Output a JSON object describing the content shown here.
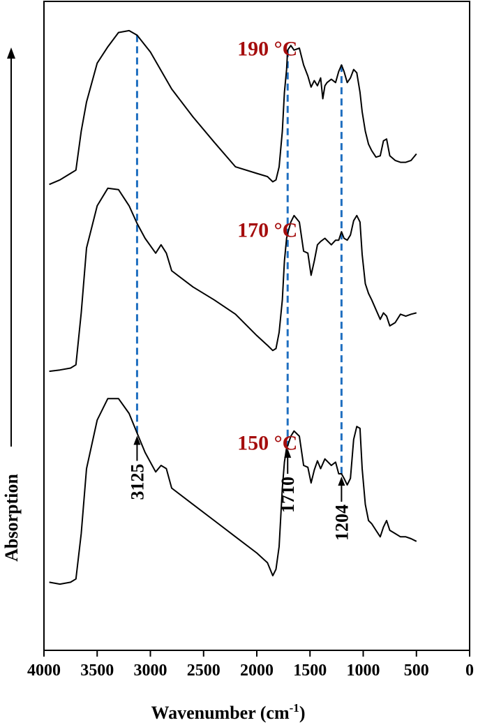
{
  "chart_data": {
    "type": "line",
    "title": "",
    "xlabel": "Wavenumber (cm",
    "xlabel_sup": "-1",
    "xlabel_end": ")",
    "ylabel": "Absorption",
    "xlim": [
      4000,
      0
    ],
    "x_reversed": true,
    "x_ticks": [
      "4000",
      "3500",
      "3000",
      "2500",
      "2000",
      "1500",
      "1000",
      "500",
      "0"
    ],
    "x_tick_values": [
      4000,
      3500,
      3000,
      2500,
      2000,
      1500,
      1000,
      500,
      0
    ],
    "y_units": "arbitrary (stacked spectra)",
    "ylim": [
      0,
      100
    ],
    "grid": false,
    "series": [
      {
        "name": "190 °C",
        "label_color": "#a50d0d",
        "x": [
          3950,
          3850,
          3750,
          3700,
          3650,
          3600,
          3500,
          3400,
          3300,
          3200,
          3125,
          3000,
          2800,
          2600,
          2400,
          2200,
          2000,
          1900,
          1850,
          1820,
          1790,
          1760,
          1740,
          1720,
          1710,
          1680,
          1650,
          1600,
          1560,
          1520,
          1490,
          1460,
          1430,
          1400,
          1380,
          1360,
          1340,
          1300,
          1260,
          1230,
          1204,
          1180,
          1150,
          1120,
          1090,
          1060,
          1030,
          1010,
          980,
          950,
          920,
          880,
          840,
          810,
          780,
          750,
          700,
          650,
          600,
          550,
          500
        ],
        "values": [
          71.8,
          72.5,
          73.5,
          74,
          80,
          84.5,
          90.5,
          93,
          95.2,
          95.5,
          94.8,
          92.2,
          86.5,
          82.2,
          78.3,
          74.5,
          73.5,
          73,
          72.2,
          72.5,
          74.5,
          80,
          86,
          89.5,
          92.5,
          93.2,
          92.5,
          92.8,
          90.2,
          88.5,
          86.8,
          87.8,
          87,
          88.2,
          85,
          87,
          87.5,
          88,
          87.5,
          89.2,
          90.2,
          89.2,
          87.5,
          88.2,
          89.5,
          89,
          86,
          83,
          80,
          78,
          77,
          76,
          76.2,
          78.5,
          78.8,
          76.2,
          75.5,
          75.2,
          75.2,
          75.5,
          76.5
        ]
      },
      {
        "name": "170 °C",
        "label_color": "#a50d0d",
        "x": [
          3950,
          3850,
          3750,
          3700,
          3650,
          3600,
          3500,
          3400,
          3300,
          3200,
          3125,
          3050,
          2950,
          2900,
          2850,
          2800,
          2600,
          2400,
          2200,
          2000,
          1900,
          1850,
          1820,
          1790,
          1760,
          1740,
          1720,
          1710,
          1680,
          1650,
          1600,
          1560,
          1520,
          1490,
          1460,
          1430,
          1400,
          1360,
          1300,
          1260,
          1230,
          1204,
          1180,
          1150,
          1120,
          1090,
          1060,
          1030,
          1010,
          980,
          950,
          920,
          880,
          840,
          810,
          780,
          750,
          700,
          650,
          600,
          550,
          500
        ],
        "values": [
          43,
          43.2,
          43.5,
          44,
          52,
          62,
          68.5,
          71.2,
          71,
          68.5,
          65.8,
          63.5,
          61.2,
          62.5,
          61.2,
          58.5,
          56,
          54,
          51.8,
          48.5,
          47,
          46.2,
          46.5,
          49,
          54,
          60,
          63.5,
          64.2,
          66,
          67,
          66,
          61.5,
          61.2,
          57.8,
          60,
          62.5,
          63,
          63.5,
          62.5,
          63.2,
          63.2,
          64.5,
          63.5,
          63.2,
          64,
          66.2,
          67,
          66,
          61,
          56.5,
          55,
          54,
          52.5,
          51,
          52,
          51.5,
          50,
          50.5,
          51.8,
          51.5,
          51.8,
          52
        ]
      },
      {
        "name": "150 °C",
        "label_color": "#a50d0d",
        "x": [
          3950,
          3850,
          3750,
          3700,
          3650,
          3600,
          3500,
          3400,
          3300,
          3200,
          3125,
          3050,
          2950,
          2900,
          2850,
          2800,
          2600,
          2400,
          2200,
          2000,
          1900,
          1850,
          1820,
          1790,
          1760,
          1740,
          1720,
          1710,
          1680,
          1650,
          1600,
          1560,
          1520,
          1490,
          1460,
          1430,
          1400,
          1360,
          1300,
          1260,
          1230,
          1204,
          1180,
          1150,
          1120,
          1090,
          1060,
          1030,
          1010,
          980,
          950,
          920,
          880,
          840,
          810,
          780,
          750,
          700,
          650,
          600,
          550,
          500
        ],
        "values": [
          10.5,
          10.2,
          10.5,
          11,
          18,
          28,
          35.5,
          38.8,
          38.8,
          36.5,
          33.5,
          30.5,
          27.5,
          28.5,
          28,
          25,
          22.5,
          20,
          17.5,
          15,
          13.5,
          11.5,
          12.5,
          16,
          25,
          29,
          31.2,
          31.5,
          33,
          33.8,
          33,
          28.5,
          28.2,
          25.8,
          27.8,
          29.2,
          28,
          29.5,
          28.5,
          29,
          27.2,
          27.2,
          26.5,
          25.5,
          26.5,
          32.5,
          34.5,
          34.2,
          28,
          22.5,
          20,
          19.5,
          18.5,
          17.5,
          19,
          20,
          18.5,
          18,
          17.5,
          17.5,
          17.2,
          16.8
        ]
      }
    ],
    "reference_lines": [
      {
        "x": 3125,
        "color": "#1f6fc0",
        "style": "dashed"
      },
      {
        "x": 1710,
        "color": "#1f6fc0",
        "style": "dashed"
      },
      {
        "x": 1204,
        "color": "#1f6fc0",
        "style": "dashed"
      }
    ],
    "annotations": [
      {
        "text": "3125",
        "x": 3125,
        "series": "150 °C"
      },
      {
        "text": "1710",
        "x": 1710,
        "series": "150 °C"
      },
      {
        "text": "1204",
        "x": 1204,
        "series": "150 °C"
      }
    ]
  }
}
